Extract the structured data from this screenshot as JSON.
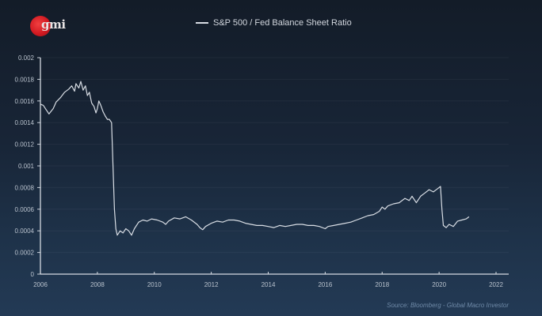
{
  "brand": {
    "logo_text": "gmi",
    "logo_color": "#d21a22"
  },
  "source_note": "Source: Bloomberg - Global Macro Investor",
  "chart_data": {
    "type": "line",
    "title": "S&P 500 / Fed Balance Sheet Ratio",
    "legend": [
      {
        "name": "S&P 500 / Fed Balance Sheet Ratio",
        "color": "#d8dde4"
      }
    ],
    "legend_position": "top-center",
    "xlabel": "",
    "ylabel": "",
    "xlim": [
      2006,
      2022.4
    ],
    "ylim": [
      0,
      0.002
    ],
    "x_ticks": [
      "2006",
      "2008",
      "2010",
      "2012",
      "2014",
      "2016",
      "2018",
      "2020",
      "2022"
    ],
    "y_ticks": [
      "0",
      "0.0002",
      "0.0004",
      "0.0006",
      "0.0008",
      "0.001",
      "0.0012",
      "0.0014",
      "0.0016",
      "0.0018",
      "0.002"
    ],
    "grid": "horizontal-faint",
    "series": [
      {
        "name": "S&P 500 / Fed Balance Sheet Ratio",
        "x": [
          2006.0,
          2006.1,
          2006.2,
          2006.3,
          2006.45,
          2006.55,
          2006.7,
          2006.85,
          2007.0,
          2007.1,
          2007.2,
          2007.25,
          2007.35,
          2007.42,
          2007.5,
          2007.58,
          2007.65,
          2007.72,
          2007.8,
          2007.88,
          2007.95,
          2008.0,
          2008.05,
          2008.12,
          2008.2,
          2008.28,
          2008.35,
          2008.42,
          2008.5,
          2008.55,
          2008.6,
          2008.65,
          2008.7,
          2008.8,
          2008.9,
          2009.0,
          2009.1,
          2009.2,
          2009.3,
          2009.45,
          2009.6,
          2009.75,
          2009.9,
          2010.1,
          2010.3,
          2010.4,
          2010.5,
          2010.7,
          2010.9,
          2011.1,
          2011.3,
          2011.5,
          2011.6,
          2011.7,
          2011.8,
          2012.0,
          2012.2,
          2012.4,
          2012.6,
          2012.8,
          2013.0,
          2013.2,
          2013.4,
          2013.6,
          2013.8,
          2014.0,
          2014.2,
          2014.4,
          2014.6,
          2014.8,
          2015.0,
          2015.2,
          2015.4,
          2015.6,
          2015.8,
          2016.0,
          2016.1,
          2016.3,
          2016.5,
          2016.7,
          2016.9,
          2017.1,
          2017.3,
          2017.5,
          2017.7,
          2017.9,
          2018.0,
          2018.1,
          2018.2,
          2018.4,
          2018.6,
          2018.8,
          2018.95,
          2019.05,
          2019.2,
          2019.35,
          2019.5,
          2019.65,
          2019.8,
          2019.95,
          2020.05,
          2020.1,
          2020.15,
          2020.25,
          2020.35,
          2020.5,
          2020.65,
          2020.8,
          2020.95,
          2021.05
        ],
        "values": [
          0.00157,
          0.00156,
          0.00152,
          0.00148,
          0.00153,
          0.00159,
          0.00163,
          0.00168,
          0.00171,
          0.00174,
          0.00169,
          0.00176,
          0.00172,
          0.00178,
          0.0017,
          0.00174,
          0.00165,
          0.00168,
          0.00158,
          0.00155,
          0.00149,
          0.00153,
          0.0016,
          0.00156,
          0.0015,
          0.00146,
          0.00143,
          0.00143,
          0.0014,
          0.001,
          0.0006,
          0.00042,
          0.00036,
          0.0004,
          0.00038,
          0.00042,
          0.0004,
          0.00036,
          0.00042,
          0.00048,
          0.0005,
          0.00049,
          0.00051,
          0.0005,
          0.00048,
          0.00046,
          0.00049,
          0.00052,
          0.00051,
          0.00053,
          0.0005,
          0.00046,
          0.00043,
          0.00041,
          0.00044,
          0.00047,
          0.00049,
          0.00048,
          0.0005,
          0.0005,
          0.00049,
          0.00047,
          0.00046,
          0.00045,
          0.00045,
          0.00044,
          0.00043,
          0.00045,
          0.00044,
          0.00045,
          0.00046,
          0.00046,
          0.00045,
          0.00045,
          0.00044,
          0.00042,
          0.00044,
          0.00045,
          0.00046,
          0.00047,
          0.00048,
          0.0005,
          0.00052,
          0.00054,
          0.00055,
          0.00058,
          0.00062,
          0.0006,
          0.00063,
          0.00065,
          0.00066,
          0.0007,
          0.00068,
          0.00072,
          0.00066,
          0.00072,
          0.00075,
          0.00078,
          0.00076,
          0.00079,
          0.00081,
          0.0006,
          0.00045,
          0.00043,
          0.00046,
          0.00044,
          0.00049,
          0.0005,
          0.00051,
          0.00053
        ]
      }
    ]
  }
}
